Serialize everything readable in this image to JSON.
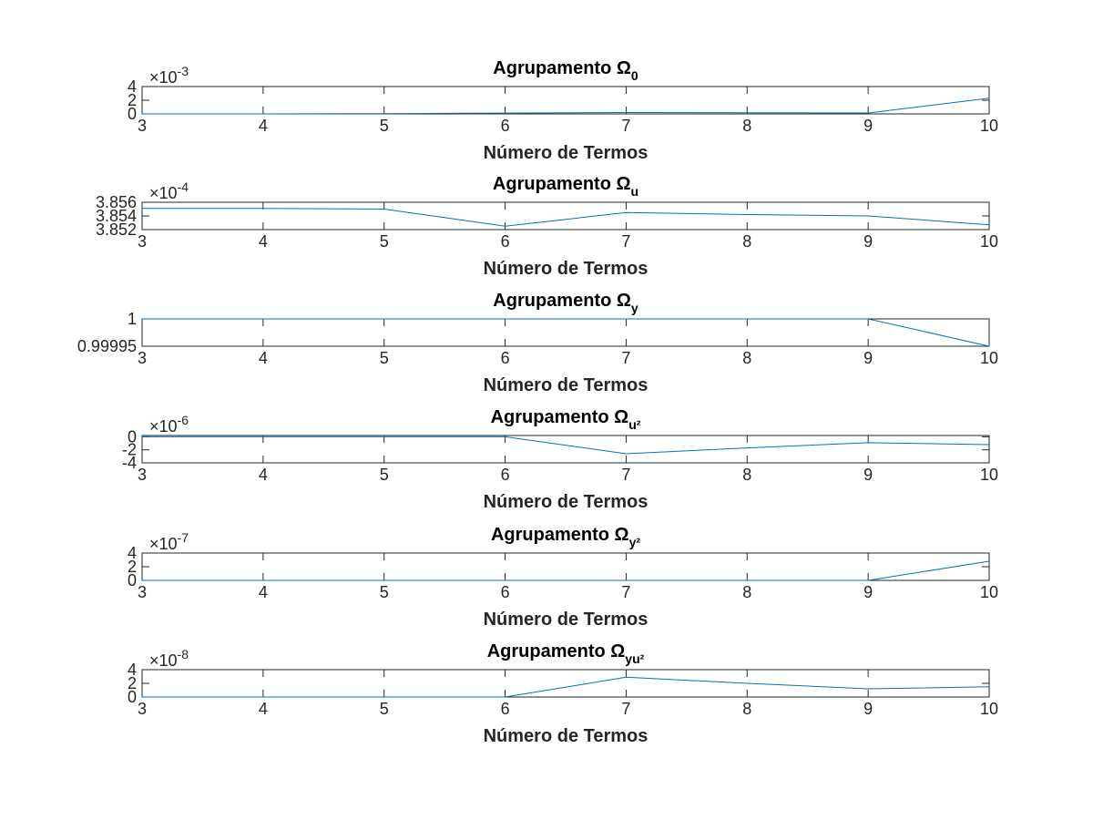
{
  "chart_data": [
    {
      "type": "line",
      "title": {
        "main": "Agrupamento Ω",
        "sub": "0"
      },
      "xlabel": "Número de Termos",
      "exponent": "×10",
      "exponent_power": "-3",
      "x": [
        3,
        4,
        5,
        6,
        7,
        8,
        9,
        10
      ],
      "values": [
        0.0,
        0.0,
        0.04,
        0.12,
        0.2,
        0.17,
        0.14,
        2.3
      ],
      "xlim": [
        3,
        10
      ],
      "ylim": [
        0,
        4
      ],
      "xticks": [
        "3",
        "4",
        "5",
        "6",
        "7",
        "8",
        "9",
        "10"
      ],
      "yticks": [
        {
          "v": 0,
          "label": "0"
        },
        {
          "v": 2,
          "label": "2"
        },
        {
          "v": 4,
          "label": "4"
        }
      ],
      "color": "#0072BD",
      "grid": false
    },
    {
      "type": "line",
      "title": {
        "main": "Agrupamento Ω",
        "sub": "u"
      },
      "xlabel": "Número de Termos",
      "exponent": "×10",
      "exponent_power": "-4",
      "x": [
        3,
        4,
        5,
        6,
        7,
        8,
        9,
        10
      ],
      "values": [
        3.8551,
        3.8551,
        3.855,
        3.8525,
        3.8545,
        3.8542,
        3.854,
        3.8527
      ],
      "xlim": [
        3,
        10
      ],
      "ylim": [
        3.852,
        3.856
      ],
      "xticks": [
        "3",
        "4",
        "5",
        "6",
        "7",
        "8",
        "9",
        "10"
      ],
      "yticks": [
        {
          "v": 3.852,
          "label": "3.852"
        },
        {
          "v": 3.854,
          "label": "3.854"
        },
        {
          "v": 3.856,
          "label": "3.856"
        }
      ],
      "color": "#0072BD",
      "grid": false
    },
    {
      "type": "line",
      "title": {
        "main": "Agrupamento Ω",
        "sub": "y"
      },
      "xlabel": "Número de Termos",
      "exponent": "",
      "exponent_power": "",
      "x": [
        3,
        4,
        5,
        6,
        7,
        8,
        9,
        10
      ],
      "values": [
        1.0,
        1.0,
        1.0,
        1.0,
        1.0,
        1.0,
        1.0,
        0.99995
      ],
      "xlim": [
        3,
        10
      ],
      "ylim": [
        0.99995,
        1.0
      ],
      "xticks": [
        "3",
        "4",
        "5",
        "6",
        "7",
        "8",
        "9",
        "10"
      ],
      "yticks": [
        {
          "v": 0.99995,
          "label": "0.99995"
        },
        {
          "v": 1.0,
          "label": "1"
        }
      ],
      "color": "#0072BD",
      "grid": false
    },
    {
      "type": "line",
      "title": {
        "main": "Agrupamento Ω",
        "sub": "u²"
      },
      "xlabel": "Número de Termos",
      "exponent": "×10",
      "exponent_power": "-6",
      "x": [
        3,
        4,
        5,
        6,
        7,
        8,
        9,
        10
      ],
      "values": [
        0.0,
        0.0,
        0.0,
        0.0,
        -2.6,
        -1.7,
        -0.9,
        -1.2
      ],
      "xlim": [
        3,
        10
      ],
      "ylim": [
        -4,
        0.2
      ],
      "xticks": [
        "3",
        "4",
        "5",
        "6",
        "7",
        "8",
        "9",
        "10"
      ],
      "yticks": [
        {
          "v": -4,
          "label": "-4"
        },
        {
          "v": -2,
          "label": "-2"
        },
        {
          "v": 0,
          "label": "0"
        }
      ],
      "color": "#0072BD",
      "grid": false
    },
    {
      "type": "line",
      "title": {
        "main": "Agrupamento Ω",
        "sub": "y²"
      },
      "xlabel": "Número de Termos",
      "exponent": "×10",
      "exponent_power": "-7",
      "x": [
        3,
        4,
        5,
        6,
        7,
        8,
        9,
        10
      ],
      "values": [
        0.0,
        0.0,
        0.0,
        0.0,
        0.0,
        0.0,
        0.0,
        2.8
      ],
      "xlim": [
        3,
        10
      ],
      "ylim": [
        0,
        4
      ],
      "xticks": [
        "3",
        "4",
        "5",
        "6",
        "7",
        "8",
        "9",
        "10"
      ],
      "yticks": [
        {
          "v": 0,
          "label": "0"
        },
        {
          "v": 2,
          "label": "2"
        },
        {
          "v": 4,
          "label": "4"
        }
      ],
      "color": "#0072BD",
      "grid": false
    },
    {
      "type": "line",
      "title": {
        "main": "Agrupamento Ω",
        "sub": "yu²"
      },
      "xlabel": "Número de Termos",
      "exponent": "×10",
      "exponent_power": "-8",
      "x": [
        3,
        4,
        5,
        6,
        7,
        8,
        9,
        10
      ],
      "values": [
        0.0,
        0.0,
        0.0,
        0.0,
        2.9,
        2.0,
        1.2,
        1.5
      ],
      "xlim": [
        3,
        10
      ],
      "ylim": [
        0,
        4
      ],
      "xticks": [
        "3",
        "4",
        "5",
        "6",
        "7",
        "8",
        "9",
        "10"
      ],
      "yticks": [
        {
          "v": 0,
          "label": "0"
        },
        {
          "v": 2,
          "label": "2"
        },
        {
          "v": 4,
          "label": "4"
        }
      ],
      "color": "#0072BD",
      "grid": false
    }
  ]
}
